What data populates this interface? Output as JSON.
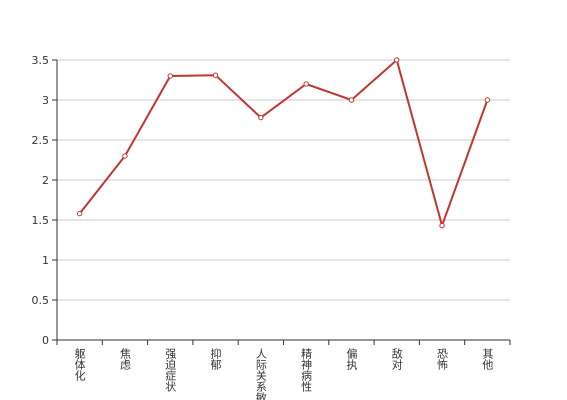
{
  "chart_data": {
    "type": "line",
    "categories": [
      "躯体化",
      "焦虑",
      "强迫症状",
      "抑郁",
      "人际关系敏感",
      "精神病性",
      "偏执",
      "敌对",
      "恐怖",
      "其他"
    ],
    "values": [
      1.58,
      2.3,
      3.3,
      3.31,
      2.78,
      3.2,
      3.0,
      3.5,
      1.43,
      3.0
    ],
    "color": "#c23531",
    "ylim": [
      0,
      3.5
    ],
    "yticks": [
      0,
      0.5,
      1,
      1.5,
      2,
      2.5,
      3,
      3.5
    ],
    "grid": true
  }
}
